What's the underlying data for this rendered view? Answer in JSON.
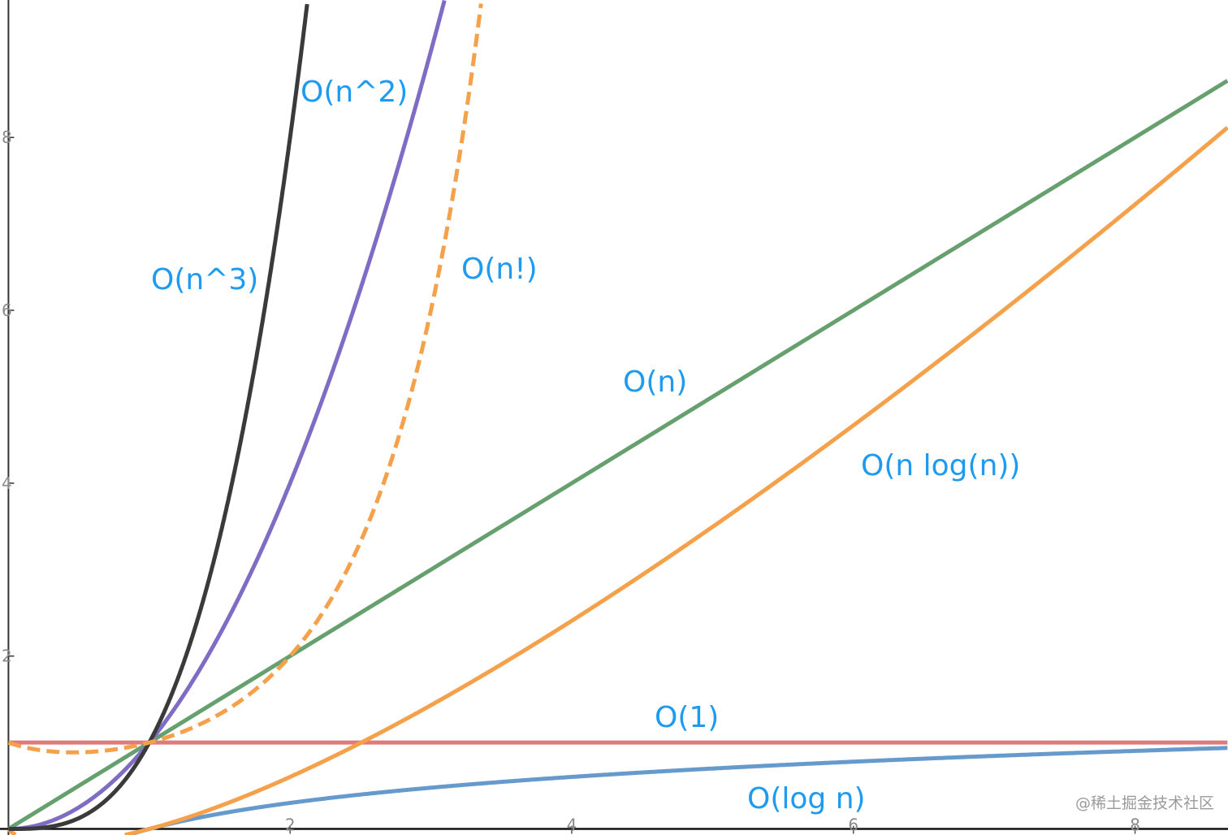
{
  "chart_data": {
    "type": "line",
    "title": "",
    "xlabel": "",
    "ylabel": "",
    "xlim": [
      -0.06,
      8.66
    ],
    "ylim": [
      -0.07,
      9.59
    ],
    "grid": false,
    "x_ticks": [
      "2",
      "4",
      "6",
      "8"
    ],
    "y_ticks": [
      "2",
      "4",
      "6",
      "8"
    ],
    "series": [
      {
        "name": "O(1)",
        "formula": "1",
        "color": "#e07a7a",
        "dashed": false
      },
      {
        "name": "O(log n)",
        "formula": "log10(n)",
        "color": "#6699cc",
        "dashed": false
      },
      {
        "name": "O(n)",
        "formula": "n",
        "color": "#66a06e",
        "dashed": false
      },
      {
        "name": "O(n log(n))",
        "formula": "n*log10(n)",
        "color": "#f5a04a",
        "dashed": false
      },
      {
        "name": "O(n^2)",
        "formula": "n^2",
        "color": "#7f6cc4",
        "dashed": false
      },
      {
        "name": "O(n^3)",
        "formula": "n^3",
        "color": "#3a3a3a",
        "dashed": false
      },
      {
        "name": "O(n!)",
        "formula": "gamma(n+1)",
        "color": "#f5a04a",
        "dashed": true
      }
    ]
  },
  "watermark": "@稀土掘金技术社区"
}
